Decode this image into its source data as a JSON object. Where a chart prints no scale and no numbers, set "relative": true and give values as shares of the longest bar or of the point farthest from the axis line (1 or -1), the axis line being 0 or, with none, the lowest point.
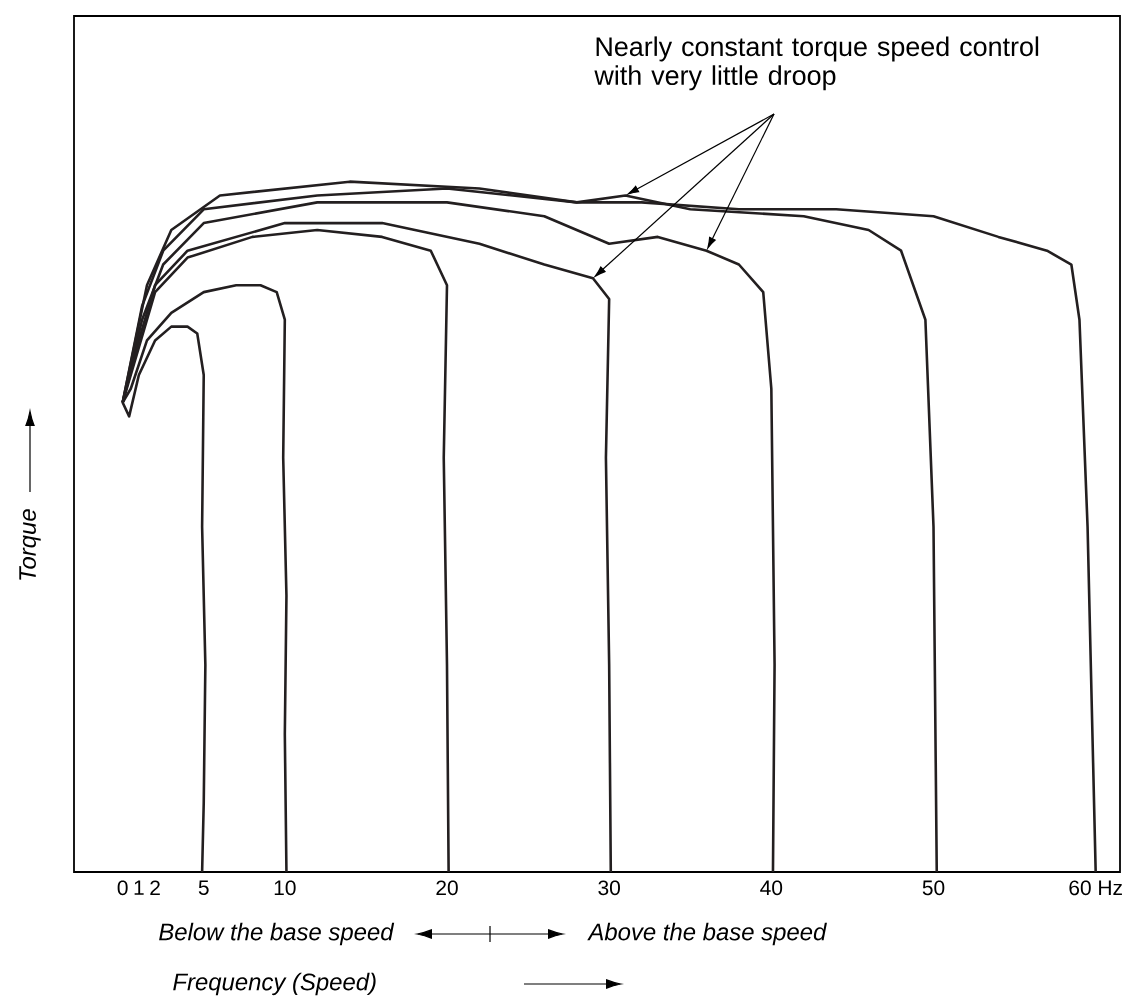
{
  "chart_data": {
    "type": "line",
    "relative": true,
    "xlabel": "Frequency (Speed)",
    "ylabel": "Torque",
    "xlim": [
      -3,
      61.5
    ],
    "xticks": [
      0,
      1,
      2,
      5,
      10,
      20,
      30,
      40,
      50,
      {
        "value": 60,
        "label": "60 Hz"
      }
    ],
    "annotations": [
      "Nearly constant torque speed control with very little droop",
      "Below the base speed",
      "Above the base speed"
    ],
    "series": [
      {
        "color": "#231f20",
        "x": [
          0,
          0.4,
          1,
          2,
          3,
          4,
          4.6,
          5,
          4.9,
          5.1,
          5,
          4.9
        ],
        "values": [
          0.68,
          0.66,
          0.72,
          0.77,
          0.79,
          0.79,
          0.78,
          0.72,
          0.5,
          0.3,
          0.1,
          0
        ]
      },
      {
        "color": "#231f20",
        "x": [
          0,
          0.5,
          1.5,
          3,
          5,
          7,
          8.5,
          9.5,
          10,
          9.9,
          10.1,
          10,
          10.1
        ],
        "values": [
          0.68,
          0.7,
          0.77,
          0.81,
          0.84,
          0.85,
          0.85,
          0.84,
          0.8,
          0.6,
          0.4,
          0.2,
          0
        ]
      },
      {
        "color": "#231f20",
        "x": [
          0,
          1,
          2,
          4,
          8,
          12,
          16,
          19,
          20,
          19.8,
          20,
          20.1
        ],
        "values": [
          0.68,
          0.76,
          0.84,
          0.89,
          0.92,
          0.93,
          0.92,
          0.9,
          0.85,
          0.6,
          0.3,
          0
        ]
      },
      {
        "color": "#231f20",
        "x": [
          0,
          1,
          2,
          4,
          10,
          16,
          22,
          26,
          29,
          30,
          29.8,
          30,
          30.1
        ],
        "values": [
          0.68,
          0.77,
          0.85,
          0.9,
          0.94,
          0.94,
          0.91,
          0.88,
          0.86,
          0.83,
          0.6,
          0.3,
          0
        ]
      },
      {
        "color": "#231f20",
        "x": [
          0,
          1.2,
          2.5,
          5,
          12,
          20,
          26,
          30,
          33,
          36,
          38,
          39.5,
          40,
          40.2,
          40.1
        ],
        "values": [
          0.68,
          0.8,
          0.88,
          0.94,
          0.97,
          0.97,
          0.95,
          0.91,
          0.92,
          0.9,
          0.88,
          0.84,
          0.7,
          0.3,
          0
        ]
      },
      {
        "color": "#231f20",
        "x": [
          0,
          1.2,
          2.5,
          5,
          12,
          20,
          28,
          31,
          35,
          42,
          46,
          48,
          49.5,
          50,
          50.2
        ],
        "values": [
          0.68,
          0.82,
          0.9,
          0.96,
          0.98,
          0.99,
          0.97,
          0.98,
          0.96,
          0.95,
          0.93,
          0.9,
          0.8,
          0.5,
          0
        ]
      },
      {
        "color": "#231f20",
        "x": [
          0,
          1.5,
          3,
          6,
          14,
          22,
          28,
          32,
          38,
          44,
          50,
          54,
          57,
          58.5,
          59,
          59.5,
          60
        ],
        "values": [
          0.68,
          0.85,
          0.93,
          0.98,
          1.0,
          0.99,
          0.97,
          0.97,
          0.96,
          0.96,
          0.95,
          0.92,
          0.9,
          0.88,
          0.8,
          0.5,
          0
        ]
      }
    ]
  }
}
